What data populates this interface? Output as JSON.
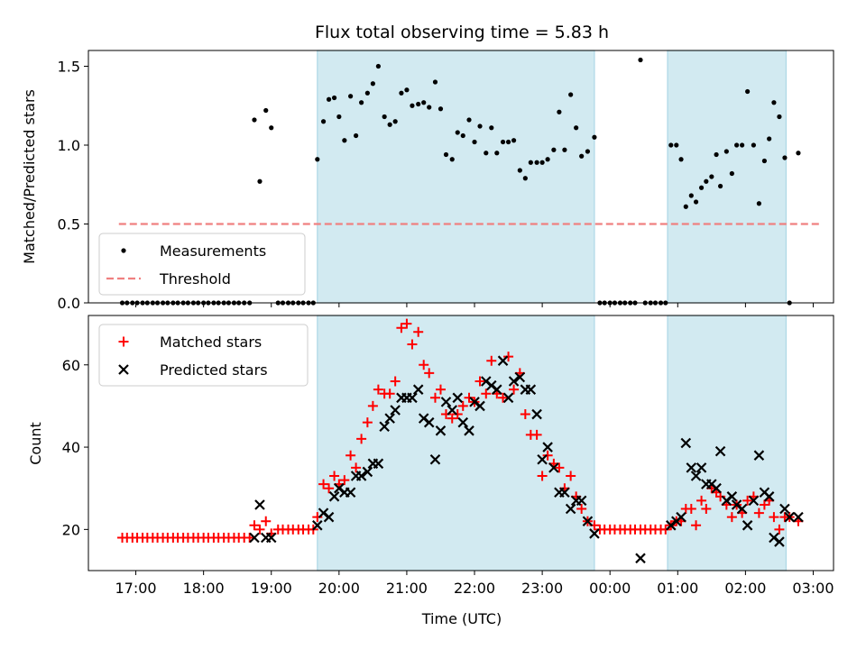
{
  "chart_data": {
    "title": "Flux total observing time = 5.83 h",
    "xlabel": "Time (UTC)",
    "x_unit": "hours (UTC, >24 = next day)",
    "xlim": [
      16.3,
      27.3
    ],
    "x_ticks": [
      {
        "x": 17,
        "label": "17:00"
      },
      {
        "x": 18,
        "label": "18:00"
      },
      {
        "x": 19,
        "label": "19:00"
      },
      {
        "x": 20,
        "label": "20:00"
      },
      {
        "x": 21,
        "label": "21:00"
      },
      {
        "x": 22,
        "label": "22:00"
      },
      {
        "x": 23,
        "label": "23:00"
      },
      {
        "x": 24,
        "label": "00:00"
      },
      {
        "x": 25,
        "label": "01:00"
      },
      {
        "x": 26,
        "label": "02:00"
      },
      {
        "x": 27,
        "label": "03:00"
      }
    ],
    "highlight_spans": [
      [
        19.68,
        23.77
      ],
      [
        24.85,
        26.6
      ]
    ],
    "highlight_color": "#add8e6",
    "top": {
      "type": "scatter",
      "ylabel": "Matched/Predicted stars",
      "ylim": [
        0,
        1.6
      ],
      "y_ticks": [
        0.0,
        0.5,
        1.0,
        1.5
      ],
      "y_tick_labels": [
        "0.0",
        "0.5",
        "1.0",
        "1.5"
      ],
      "legend": {
        "position": "lower-left",
        "entries": [
          {
            "label": "Measurements",
            "marker": "dot",
            "color": "#000000"
          },
          {
            "label": "Threshold",
            "marker": "dashed-line",
            "color": "#f08080"
          }
        ]
      },
      "threshold": {
        "value": 0.5,
        "x_range": [
          16.75,
          27.1
        ],
        "color": "#f08080"
      },
      "measurements": [
        [
          16.8,
          0
        ],
        [
          16.87,
          0
        ],
        [
          16.95,
          0
        ],
        [
          17.02,
          0
        ],
        [
          17.1,
          0
        ],
        [
          17.17,
          0
        ],
        [
          17.25,
          0
        ],
        [
          17.32,
          0
        ],
        [
          17.4,
          0
        ],
        [
          17.47,
          0
        ],
        [
          17.55,
          0
        ],
        [
          17.62,
          0
        ],
        [
          17.7,
          0
        ],
        [
          17.77,
          0
        ],
        [
          17.85,
          0
        ],
        [
          17.92,
          0
        ],
        [
          18.0,
          0
        ],
        [
          18.07,
          0
        ],
        [
          18.15,
          0
        ],
        [
          18.22,
          0
        ],
        [
          18.3,
          0
        ],
        [
          18.37,
          0
        ],
        [
          18.45,
          0
        ],
        [
          18.52,
          0
        ],
        [
          18.6,
          0
        ],
        [
          18.68,
          0
        ],
        [
          18.75,
          1.16
        ],
        [
          18.83,
          0.77
        ],
        [
          18.92,
          1.22
        ],
        [
          19.0,
          1.11
        ],
        [
          19.1,
          0
        ],
        [
          19.17,
          0
        ],
        [
          19.25,
          0
        ],
        [
          19.32,
          0
        ],
        [
          19.4,
          0
        ],
        [
          19.47,
          0
        ],
        [
          19.55,
          0
        ],
        [
          19.62,
          0
        ],
        [
          19.68,
          0.91
        ],
        [
          19.77,
          1.15
        ],
        [
          19.85,
          1.29
        ],
        [
          19.93,
          1.3
        ],
        [
          20.0,
          1.18
        ],
        [
          20.08,
          1.03
        ],
        [
          20.17,
          1.31
        ],
        [
          20.25,
          1.06
        ],
        [
          20.33,
          1.27
        ],
        [
          20.42,
          1.33
        ],
        [
          20.5,
          1.39
        ],
        [
          20.58,
          1.5
        ],
        [
          20.67,
          1.18
        ],
        [
          20.75,
          1.13
        ],
        [
          20.83,
          1.15
        ],
        [
          20.92,
          1.33
        ],
        [
          21.0,
          1.35
        ],
        [
          21.08,
          1.25
        ],
        [
          21.17,
          1.26
        ],
        [
          21.25,
          1.27
        ],
        [
          21.33,
          1.24
        ],
        [
          21.42,
          1.4
        ],
        [
          21.5,
          1.23
        ],
        [
          21.58,
          0.94
        ],
        [
          21.67,
          0.91
        ],
        [
          21.75,
          1.08
        ],
        [
          21.83,
          1.06
        ],
        [
          21.92,
          1.16
        ],
        [
          22.0,
          1.02
        ],
        [
          22.08,
          1.12
        ],
        [
          22.17,
          0.95
        ],
        [
          22.25,
          1.11
        ],
        [
          22.33,
          0.95
        ],
        [
          22.42,
          1.02
        ],
        [
          22.5,
          1.02
        ],
        [
          22.58,
          1.03
        ],
        [
          22.67,
          0.84
        ],
        [
          22.75,
          0.79
        ],
        [
          22.83,
          0.89
        ],
        [
          22.92,
          0.89
        ],
        [
          23.0,
          0.89
        ],
        [
          23.08,
          0.91
        ],
        [
          23.17,
          0.97
        ],
        [
          23.25,
          1.21
        ],
        [
          23.33,
          0.97
        ],
        [
          23.42,
          1.32
        ],
        [
          23.5,
          1.11
        ],
        [
          23.58,
          0.93
        ],
        [
          23.67,
          0.96
        ],
        [
          23.77,
          1.05
        ],
        [
          23.85,
          0
        ],
        [
          23.92,
          0
        ],
        [
          24.0,
          0
        ],
        [
          24.07,
          0
        ],
        [
          24.15,
          0
        ],
        [
          24.22,
          0
        ],
        [
          24.3,
          0
        ],
        [
          24.37,
          0
        ],
        [
          24.45,
          1.54
        ],
        [
          24.52,
          0
        ],
        [
          24.6,
          0
        ],
        [
          24.67,
          0
        ],
        [
          24.75,
          0
        ],
        [
          24.82,
          0
        ],
        [
          24.9,
          1.0
        ],
        [
          24.98,
          1.0
        ],
        [
          25.05,
          0.91
        ],
        [
          25.12,
          0.61
        ],
        [
          25.2,
          0.68
        ],
        [
          25.27,
          0.64
        ],
        [
          25.35,
          0.73
        ],
        [
          25.42,
          0.77
        ],
        [
          25.5,
          0.8
        ],
        [
          25.57,
          0.94
        ],
        [
          25.63,
          0.74
        ],
        [
          25.72,
          0.96
        ],
        [
          25.8,
          0.82
        ],
        [
          25.87,
          1.0
        ],
        [
          25.95,
          1.0
        ],
        [
          26.03,
          1.34
        ],
        [
          26.12,
          1.0
        ],
        [
          26.2,
          0.63
        ],
        [
          26.28,
          0.9
        ],
        [
          26.35,
          1.04
        ],
        [
          26.42,
          1.27
        ],
        [
          26.5,
          1.18
        ],
        [
          26.58,
          0.92
        ],
        [
          26.65,
          0
        ],
        [
          26.78,
          0.95
        ]
      ]
    },
    "bottom": {
      "type": "scatter",
      "ylabel": "Count",
      "ylim": [
        10,
        72
      ],
      "y_ticks": [
        20,
        40,
        60
      ],
      "y_tick_labels": [
        "20",
        "40",
        "60"
      ],
      "legend": {
        "position": "upper-left",
        "entries": [
          {
            "label": "Matched stars",
            "marker": "plus",
            "color": "#ff0000"
          },
          {
            "label": "Predicted stars",
            "marker": "x",
            "color": "#000000"
          }
        ]
      },
      "matched": [
        [
          16.8,
          18
        ],
        [
          16.87,
          18
        ],
        [
          16.95,
          18
        ],
        [
          17.02,
          18
        ],
        [
          17.1,
          18
        ],
        [
          17.17,
          18
        ],
        [
          17.25,
          18
        ],
        [
          17.32,
          18
        ],
        [
          17.4,
          18
        ],
        [
          17.47,
          18
        ],
        [
          17.55,
          18
        ],
        [
          17.62,
          18
        ],
        [
          17.7,
          18
        ],
        [
          17.77,
          18
        ],
        [
          17.85,
          18
        ],
        [
          17.92,
          18
        ],
        [
          18.0,
          18
        ],
        [
          18.07,
          18
        ],
        [
          18.15,
          18
        ],
        [
          18.22,
          18
        ],
        [
          18.3,
          18
        ],
        [
          18.37,
          18
        ],
        [
          18.45,
          18
        ],
        [
          18.52,
          18
        ],
        [
          18.6,
          18
        ],
        [
          18.68,
          18
        ],
        [
          18.75,
          21
        ],
        [
          18.83,
          20
        ],
        [
          18.92,
          22
        ],
        [
          19.0,
          19
        ],
        [
          19.1,
          20
        ],
        [
          19.17,
          20
        ],
        [
          19.25,
          20
        ],
        [
          19.32,
          20
        ],
        [
          19.4,
          20
        ],
        [
          19.47,
          20
        ],
        [
          19.55,
          20
        ],
        [
          19.62,
          20
        ],
        [
          19.68,
          23
        ],
        [
          19.77,
          31
        ],
        [
          19.85,
          30
        ],
        [
          19.93,
          33
        ],
        [
          20.0,
          31
        ],
        [
          20.08,
          32
        ],
        [
          20.17,
          38
        ],
        [
          20.25,
          35
        ],
        [
          20.33,
          42
        ],
        [
          20.42,
          46
        ],
        [
          20.5,
          50
        ],
        [
          20.58,
          54
        ],
        [
          20.67,
          53
        ],
        [
          20.75,
          53
        ],
        [
          20.83,
          56
        ],
        [
          20.92,
          69
        ],
        [
          21.0,
          70
        ],
        [
          21.08,
          65
        ],
        [
          21.17,
          68
        ],
        [
          21.25,
          60
        ],
        [
          21.33,
          58
        ],
        [
          21.42,
          52
        ],
        [
          21.5,
          54
        ],
        [
          21.58,
          48
        ],
        [
          21.67,
          47
        ],
        [
          21.75,
          48
        ],
        [
          21.83,
          50
        ],
        [
          21.92,
          52
        ],
        [
          22.0,
          51
        ],
        [
          22.08,
          56
        ],
        [
          22.17,
          53
        ],
        [
          22.25,
          61
        ],
        [
          22.33,
          53
        ],
        [
          22.42,
          52
        ],
        [
          22.5,
          62
        ],
        [
          22.58,
          54
        ],
        [
          22.67,
          58
        ],
        [
          22.75,
          48
        ],
        [
          22.83,
          43
        ],
        [
          22.92,
          43
        ],
        [
          23.0,
          33
        ],
        [
          23.08,
          38
        ],
        [
          23.17,
          36
        ],
        [
          23.25,
          35
        ],
        [
          23.33,
          30
        ],
        [
          23.42,
          33
        ],
        [
          23.5,
          28
        ],
        [
          23.58,
          25
        ],
        [
          23.67,
          22
        ],
        [
          23.77,
          21
        ],
        [
          23.85,
          20
        ],
        [
          23.92,
          20
        ],
        [
          24.0,
          20
        ],
        [
          24.07,
          20
        ],
        [
          24.15,
          20
        ],
        [
          24.22,
          20
        ],
        [
          24.3,
          20
        ],
        [
          24.37,
          20
        ],
        [
          24.45,
          20
        ],
        [
          24.52,
          20
        ],
        [
          24.6,
          20
        ],
        [
          24.67,
          20
        ],
        [
          24.75,
          20
        ],
        [
          24.82,
          20
        ],
        [
          24.9,
          21
        ],
        [
          24.98,
          22
        ],
        [
          25.05,
          22
        ],
        [
          25.12,
          25
        ],
        [
          25.2,
          25
        ],
        [
          25.27,
          21
        ],
        [
          25.35,
          27
        ],
        [
          25.42,
          25
        ],
        [
          25.5,
          30
        ],
        [
          25.57,
          29
        ],
        [
          25.63,
          28
        ],
        [
          25.72,
          26
        ],
        [
          25.8,
          23
        ],
        [
          25.87,
          26
        ],
        [
          25.95,
          24
        ],
        [
          26.03,
          27
        ],
        [
          26.12,
          28
        ],
        [
          26.2,
          24
        ],
        [
          26.28,
          26
        ],
        [
          26.35,
          27
        ],
        [
          26.42,
          23
        ],
        [
          26.5,
          20
        ],
        [
          26.58,
          23
        ],
        [
          26.65,
          23
        ],
        [
          26.78,
          22
        ]
      ],
      "predicted": [
        [
          18.75,
          18
        ],
        [
          18.83,
          26
        ],
        [
          18.92,
          18
        ],
        [
          19.0,
          18
        ],
        [
          19.68,
          21
        ],
        [
          19.77,
          24
        ],
        [
          19.85,
          23
        ],
        [
          19.93,
          28
        ],
        [
          20.0,
          30
        ],
        [
          20.08,
          29
        ],
        [
          20.17,
          29
        ],
        [
          20.25,
          33
        ],
        [
          20.33,
          33
        ],
        [
          20.42,
          34
        ],
        [
          20.5,
          36
        ],
        [
          20.58,
          36
        ],
        [
          20.67,
          45
        ],
        [
          20.75,
          47
        ],
        [
          20.83,
          49
        ],
        [
          20.92,
          52
        ],
        [
          21.0,
          52
        ],
        [
          21.08,
          52
        ],
        [
          21.17,
          54
        ],
        [
          21.25,
          47
        ],
        [
          21.33,
          46
        ],
        [
          21.42,
          37
        ],
        [
          21.5,
          44
        ],
        [
          21.58,
          51
        ],
        [
          21.67,
          49
        ],
        [
          21.75,
          52
        ],
        [
          21.83,
          46
        ],
        [
          21.92,
          44
        ],
        [
          22.0,
          51
        ],
        [
          22.08,
          50
        ],
        [
          22.17,
          56
        ],
        [
          22.25,
          55
        ],
        [
          22.33,
          54
        ],
        [
          22.42,
          61
        ],
        [
          22.5,
          52
        ],
        [
          22.58,
          56
        ],
        [
          22.67,
          57
        ],
        [
          22.75,
          54
        ],
        [
          22.83,
          54
        ],
        [
          22.92,
          48
        ],
        [
          23.0,
          37
        ],
        [
          23.08,
          40
        ],
        [
          23.17,
          35
        ],
        [
          23.25,
          29
        ],
        [
          23.33,
          29
        ],
        [
          23.42,
          25
        ],
        [
          23.5,
          27
        ],
        [
          23.58,
          27
        ],
        [
          23.67,
          22
        ],
        [
          23.77,
          19
        ],
        [
          24.45,
          13
        ],
        [
          24.9,
          21
        ],
        [
          24.98,
          22
        ],
        [
          25.05,
          23
        ],
        [
          25.12,
          41
        ],
        [
          25.2,
          35
        ],
        [
          25.27,
          33
        ],
        [
          25.35,
          35
        ],
        [
          25.42,
          31
        ],
        [
          25.5,
          31
        ],
        [
          25.57,
          30
        ],
        [
          25.63,
          39
        ],
        [
          25.72,
          27
        ],
        [
          25.8,
          28
        ],
        [
          25.87,
          26
        ],
        [
          25.95,
          25
        ],
        [
          26.03,
          21
        ],
        [
          26.12,
          27
        ],
        [
          26.2,
          38
        ],
        [
          26.28,
          29
        ],
        [
          26.35,
          28
        ],
        [
          26.42,
          18
        ],
        [
          26.5,
          17
        ],
        [
          26.58,
          25
        ],
        [
          26.65,
          23
        ],
        [
          26.78,
          23
        ]
      ]
    }
  }
}
